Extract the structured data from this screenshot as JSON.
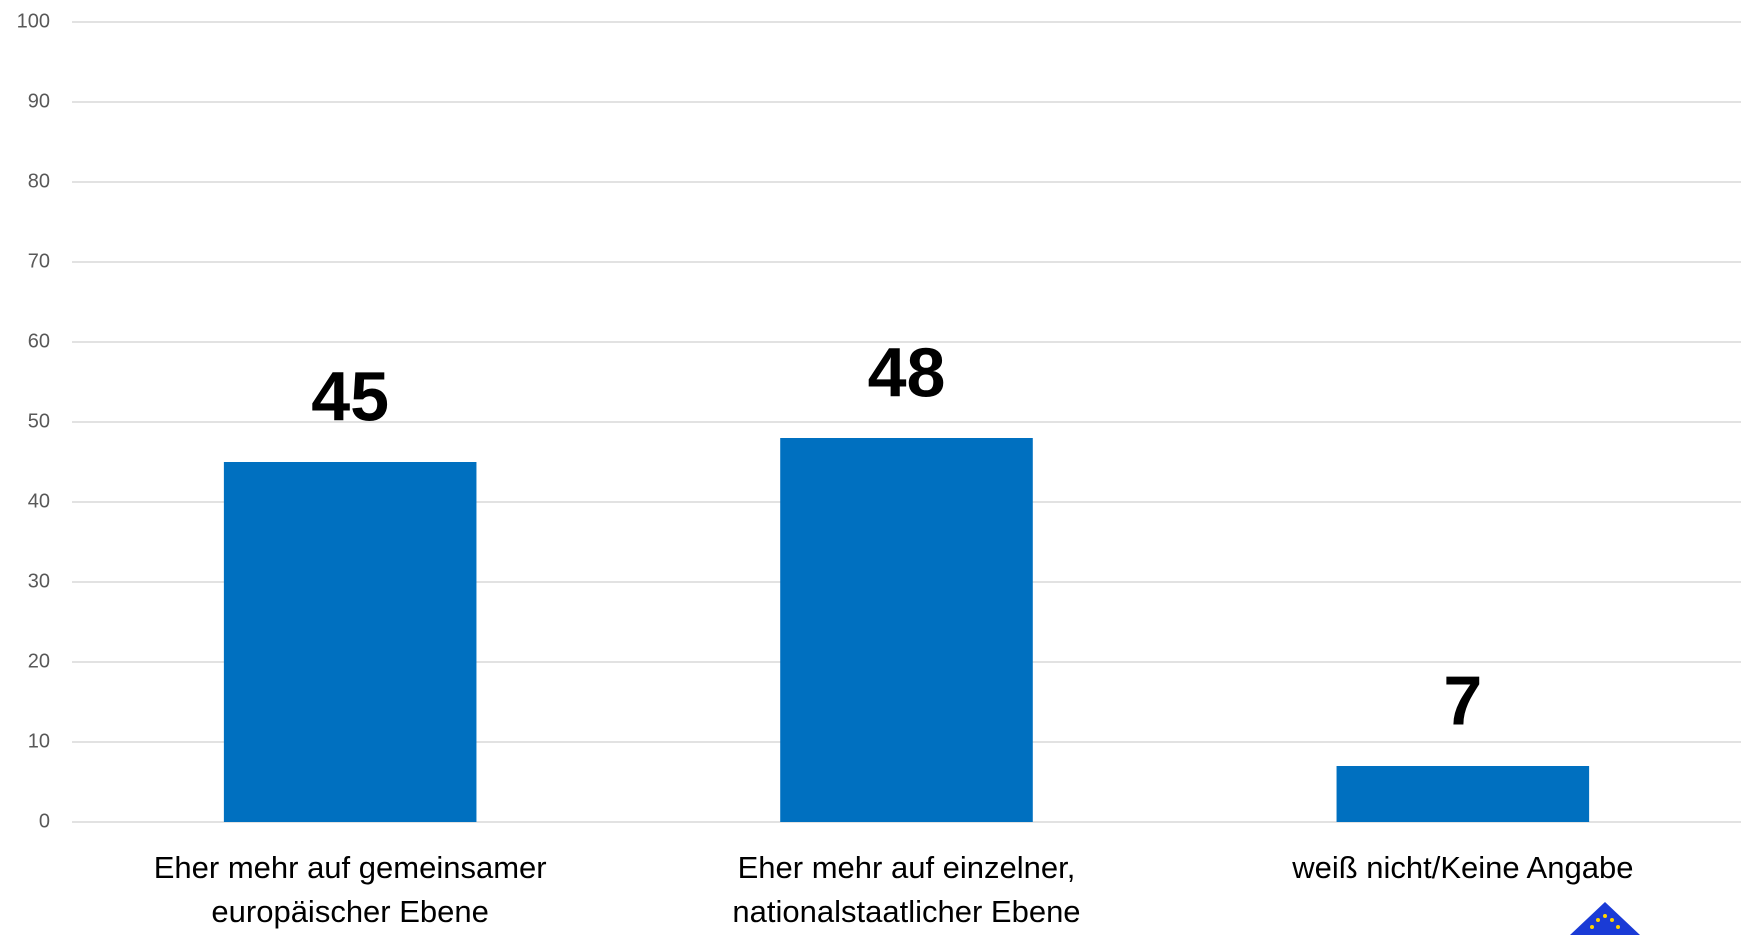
{
  "chart_data": {
    "type": "bar",
    "categories": [
      "Eher mehr auf gemeinsamer europäischer Ebene",
      "Eher mehr auf einzelner, nationalstaatlicher Ebene",
      "weiß nicht/Keine Angabe"
    ],
    "values": [
      45,
      48,
      7
    ],
    "color": "#0070c0",
    "ylim": [
      0,
      100
    ],
    "yticks": [
      0,
      10,
      20,
      30,
      40,
      50,
      60,
      70,
      80,
      90,
      100
    ],
    "grid": true
  }
}
